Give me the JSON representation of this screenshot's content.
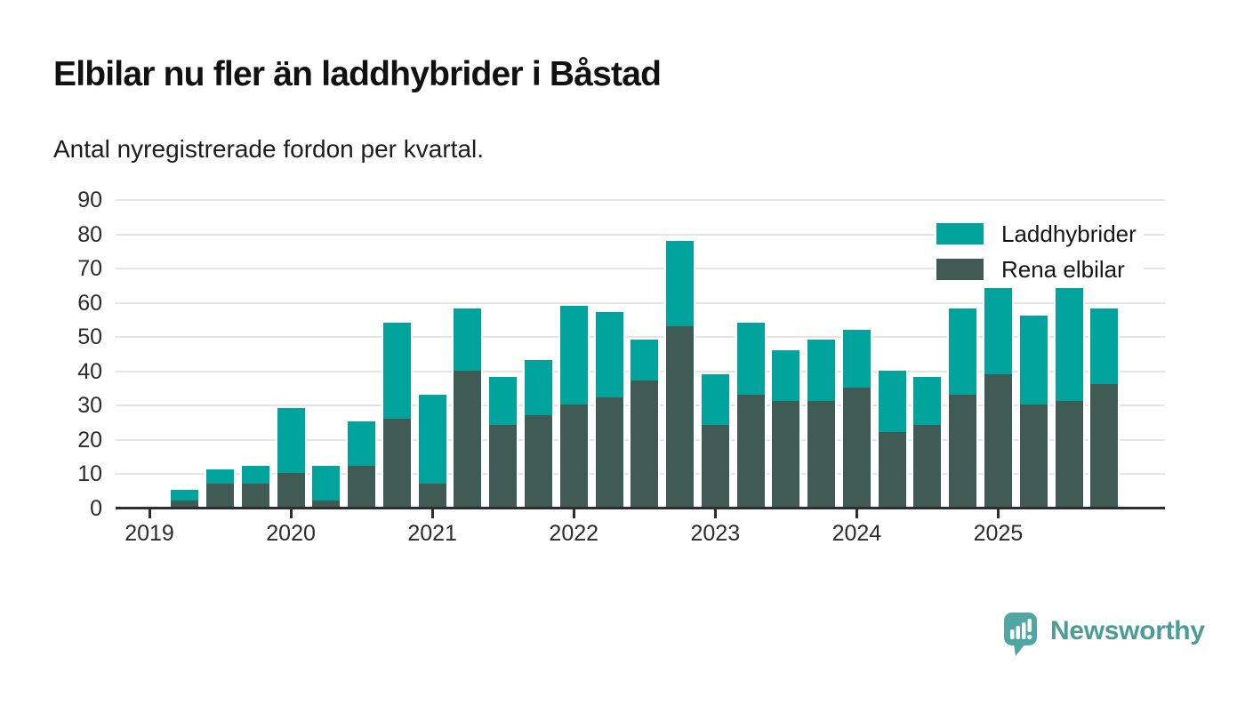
{
  "header": {
    "title": "Elbilar nu fler än laddhybrider i Båstad",
    "subtitle": "Antal nyregistrerade fordon per kvartal."
  },
  "chart_data": {
    "type": "bar",
    "stacked": true,
    "title": "Elbilar nu fler än laddhybrider i Båstad",
    "subtitle": "Antal nyregistrerade fordon per kvartal.",
    "x": [
      "2019 Q1",
      "2019 Q2",
      "2019 Q3",
      "2019 Q4",
      "2020 Q1",
      "2020 Q2",
      "2020 Q3",
      "2020 Q4",
      "2021 Q1",
      "2021 Q2",
      "2021 Q3",
      "2021 Q4",
      "2022 Q1",
      "2022 Q2",
      "2022 Q3",
      "2022 Q4",
      "2023 Q1",
      "2023 Q2",
      "2023 Q3",
      "2023 Q4",
      "2024 Q1",
      "2024 Q2",
      "2024 Q3",
      "2024 Q4",
      "2025 Q1",
      "2025 Q2",
      "2025 Q3",
      "2025 Q4"
    ],
    "series": [
      {
        "name": "Laddhybrider",
        "color": "#00a49d",
        "stack_position": "top",
        "values": [
          0,
          3,
          4,
          5,
          19,
          10,
          13,
          28,
          26,
          18,
          14,
          16,
          29,
          25,
          12,
          25,
          15,
          21,
          15,
          18,
          17,
          18,
          14,
          25,
          25,
          26,
          33,
          22
        ]
      },
      {
        "name": "Rena elbilar",
        "color": "#3f5b53",
        "stack_position": "bottom",
        "values": [
          0,
          2,
          7,
          7,
          10,
          2,
          12,
          26,
          7,
          40,
          24,
          27,
          30,
          32,
          37,
          53,
          24,
          33,
          31,
          31,
          35,
          22,
          24,
          33,
          39,
          30,
          31,
          36
        ]
      }
    ],
    "stack_totals": [
      0,
      5,
      11,
      12,
      29,
      12,
      25,
      54,
      33,
      58,
      38,
      43,
      59,
      57,
      49,
      78,
      39,
      54,
      46,
      49,
      52,
      40,
      38,
      58,
      64,
      56,
      64,
      58
    ],
    "ylim": [
      0,
      90
    ],
    "yticks": [
      0,
      10,
      20,
      30,
      40,
      50,
      60,
      70,
      80,
      90
    ],
    "year_tick_labels": [
      "2019",
      "2020",
      "2021",
      "2022",
      "2023",
      "2024",
      "2025"
    ],
    "grid": true,
    "legend_position": "top-right",
    "colors": {
      "gridline": "#e5e5e5",
      "axis": "#2e2e2e",
      "tick_text": "#2b2b2b"
    }
  },
  "footer": {
    "brand": "Newsworthy",
    "brand_color": "#4d9c98",
    "logo_icon": "speech-bubble-bar-chart-icon"
  }
}
